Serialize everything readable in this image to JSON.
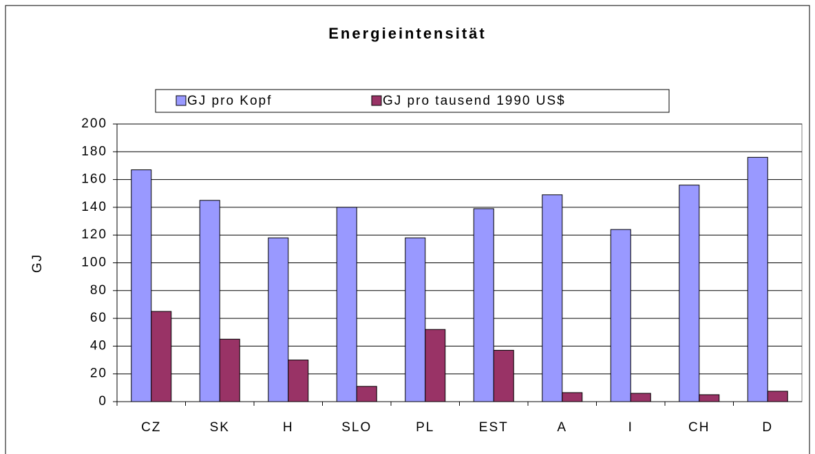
{
  "chart_data": {
    "type": "bar",
    "title": "Energieintensität",
    "y_label": "GJ",
    "categories": [
      "CZ",
      "SK",
      "H",
      "SLO",
      "PL",
      "EST",
      "A",
      "I",
      "CH",
      "D"
    ],
    "series": [
      {
        "name": "GJ pro Kopf",
        "color": "#9999ff",
        "values": [
          167,
          145,
          118,
          140,
          118,
          139,
          149,
          124,
          156,
          176
        ]
      },
      {
        "name": "GJ pro tausend 1990 US$",
        "color": "#993366",
        "values": [
          65,
          45,
          30,
          11,
          52,
          37,
          6.5,
          6,
          5,
          7.5
        ]
      }
    ],
    "ylim": [
      0,
      200
    ],
    "yticks": [
      0,
      20,
      40,
      60,
      80,
      100,
      120,
      140,
      160,
      180,
      200
    ],
    "grid": true,
    "legend": "top"
  }
}
